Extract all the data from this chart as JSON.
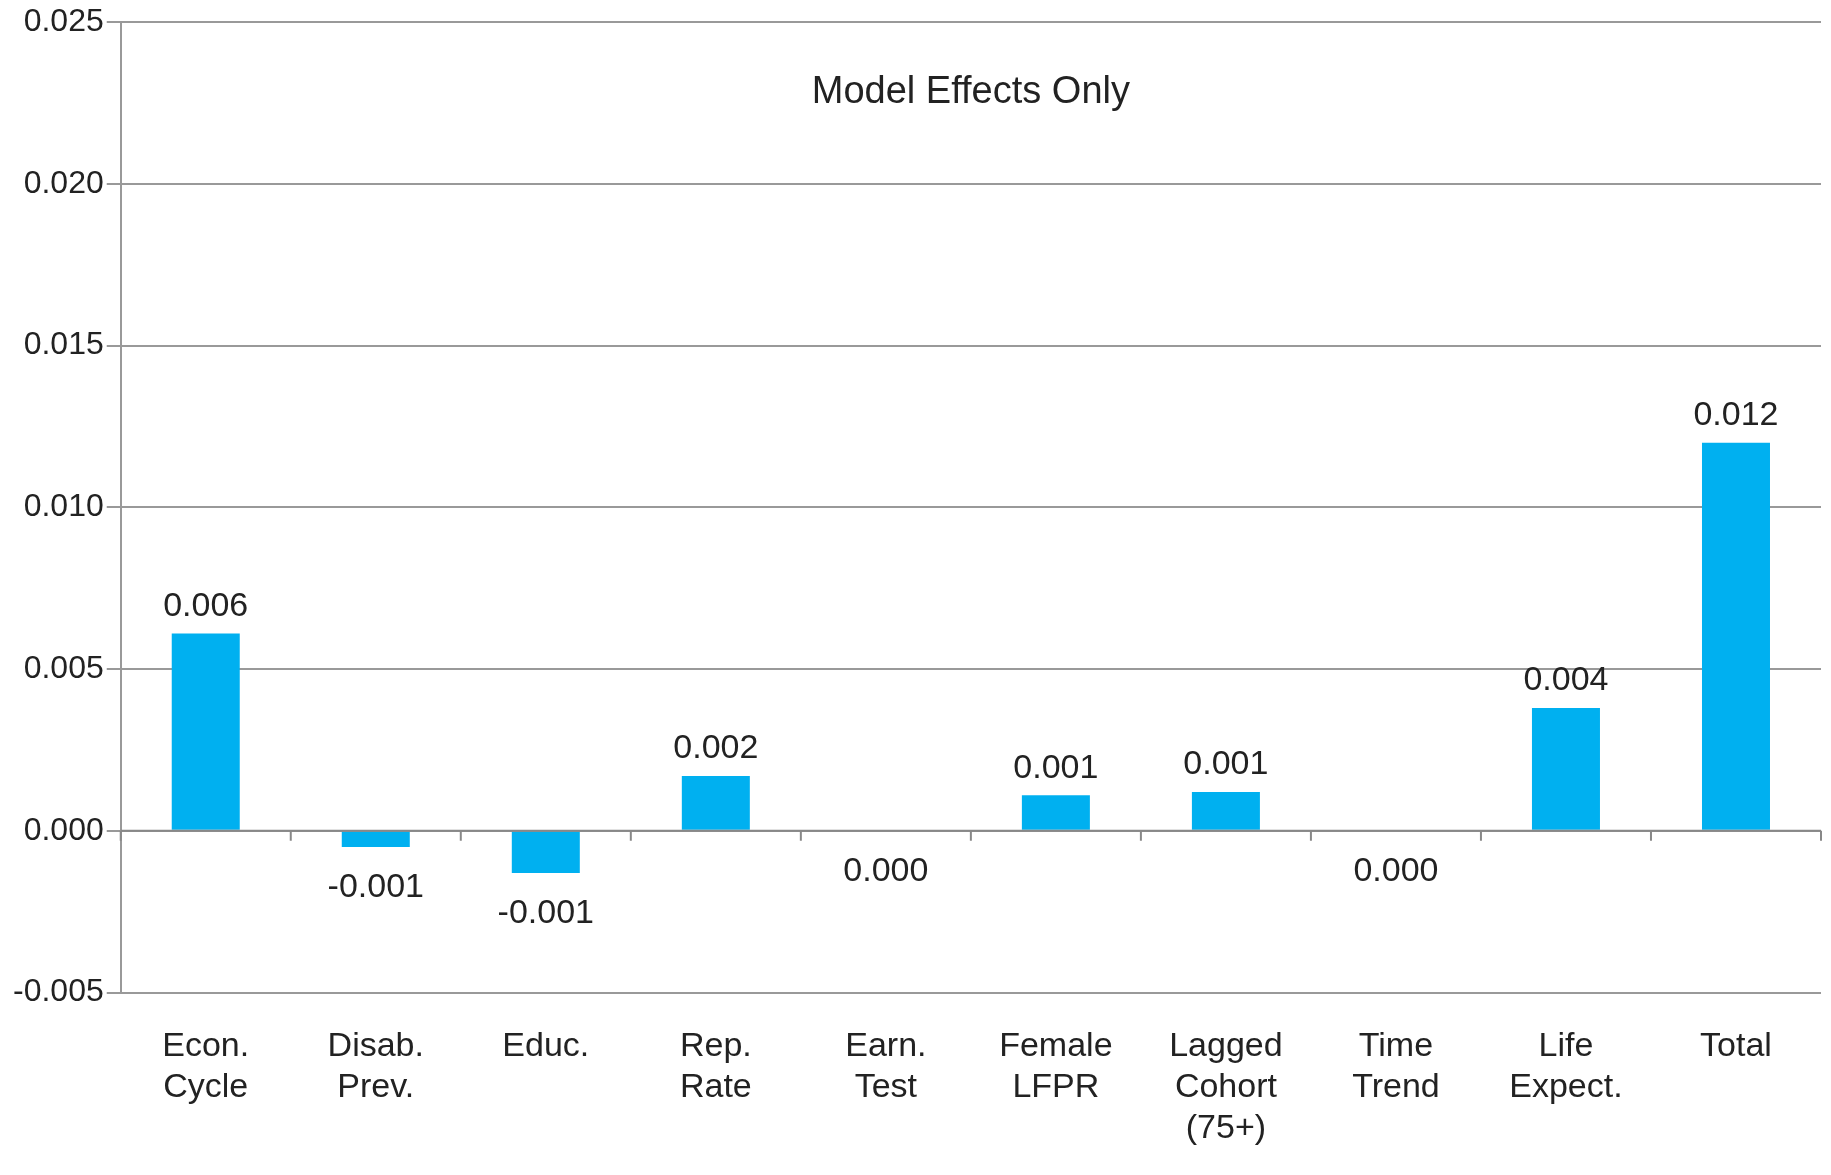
{
  "chart_data": {
    "type": "bar",
    "title": "Model Effects Only",
    "categories": [
      "Econ. Cycle",
      "Disab. Prev.",
      "Educ.",
      "Rep. Rate",
      "Earn. Test",
      "Female LFPR",
      "Lagged Cohort (75+)",
      "Time Trend",
      "Life Expect.",
      "Total"
    ],
    "values": [
      0.0061,
      -0.0005,
      -0.0013,
      0.0017,
      0,
      0.0011,
      0.0012,
      0,
      0.0038,
      0.012
    ],
    "value_labels": [
      "0.006",
      "-0.001",
      "-0.001",
      "0.002",
      "0.000",
      "0.001",
      "0.001",
      "0.000",
      "0.004",
      "0.012"
    ],
    "color": "#00b0f0",
    "ylim": [
      -0.005,
      0.025
    ],
    "yticks": [
      "-0.005",
      "0.000",
      "0.005",
      "0.010",
      "0.015",
      "0.020",
      "0.025"
    ],
    "grid": "y",
    "legend": false
  }
}
